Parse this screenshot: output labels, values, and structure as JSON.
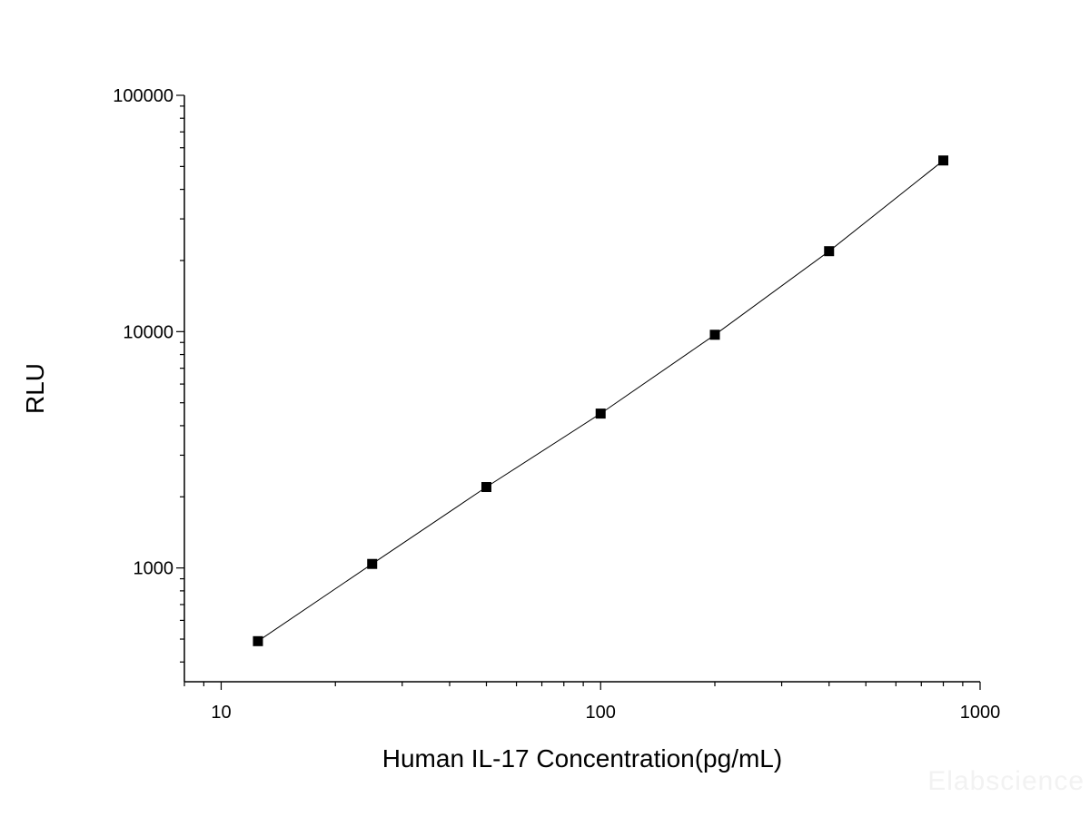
{
  "chart_data": {
    "type": "line",
    "title": "",
    "xlabel": "Human IL-17 Concentration(pg/mL)",
    "ylabel": "RLU",
    "x_scale": "log",
    "y_scale": "log",
    "xlim": [
      8,
      1000
    ],
    "ylim": [
      330,
      100000
    ],
    "x_ticks": [
      10,
      100,
      1000
    ],
    "x_tick_labels": [
      "10",
      "100",
      "1000"
    ],
    "y_ticks": [
      1000,
      10000,
      100000
    ],
    "y_tick_labels": [
      "1000",
      "10000",
      "100000"
    ],
    "grid": false,
    "legend": "none",
    "marker": "square",
    "colors": {
      "line": "#000000",
      "marker": "#000000",
      "axis": "#000000"
    },
    "series": [
      {
        "x": [
          12.5,
          25,
          50,
          100,
          200,
          400,
          800
        ],
        "y": [
          490,
          1040,
          2200,
          4500,
          9700,
          21900,
          53000
        ]
      }
    ]
  },
  "watermark": "Elabscience"
}
